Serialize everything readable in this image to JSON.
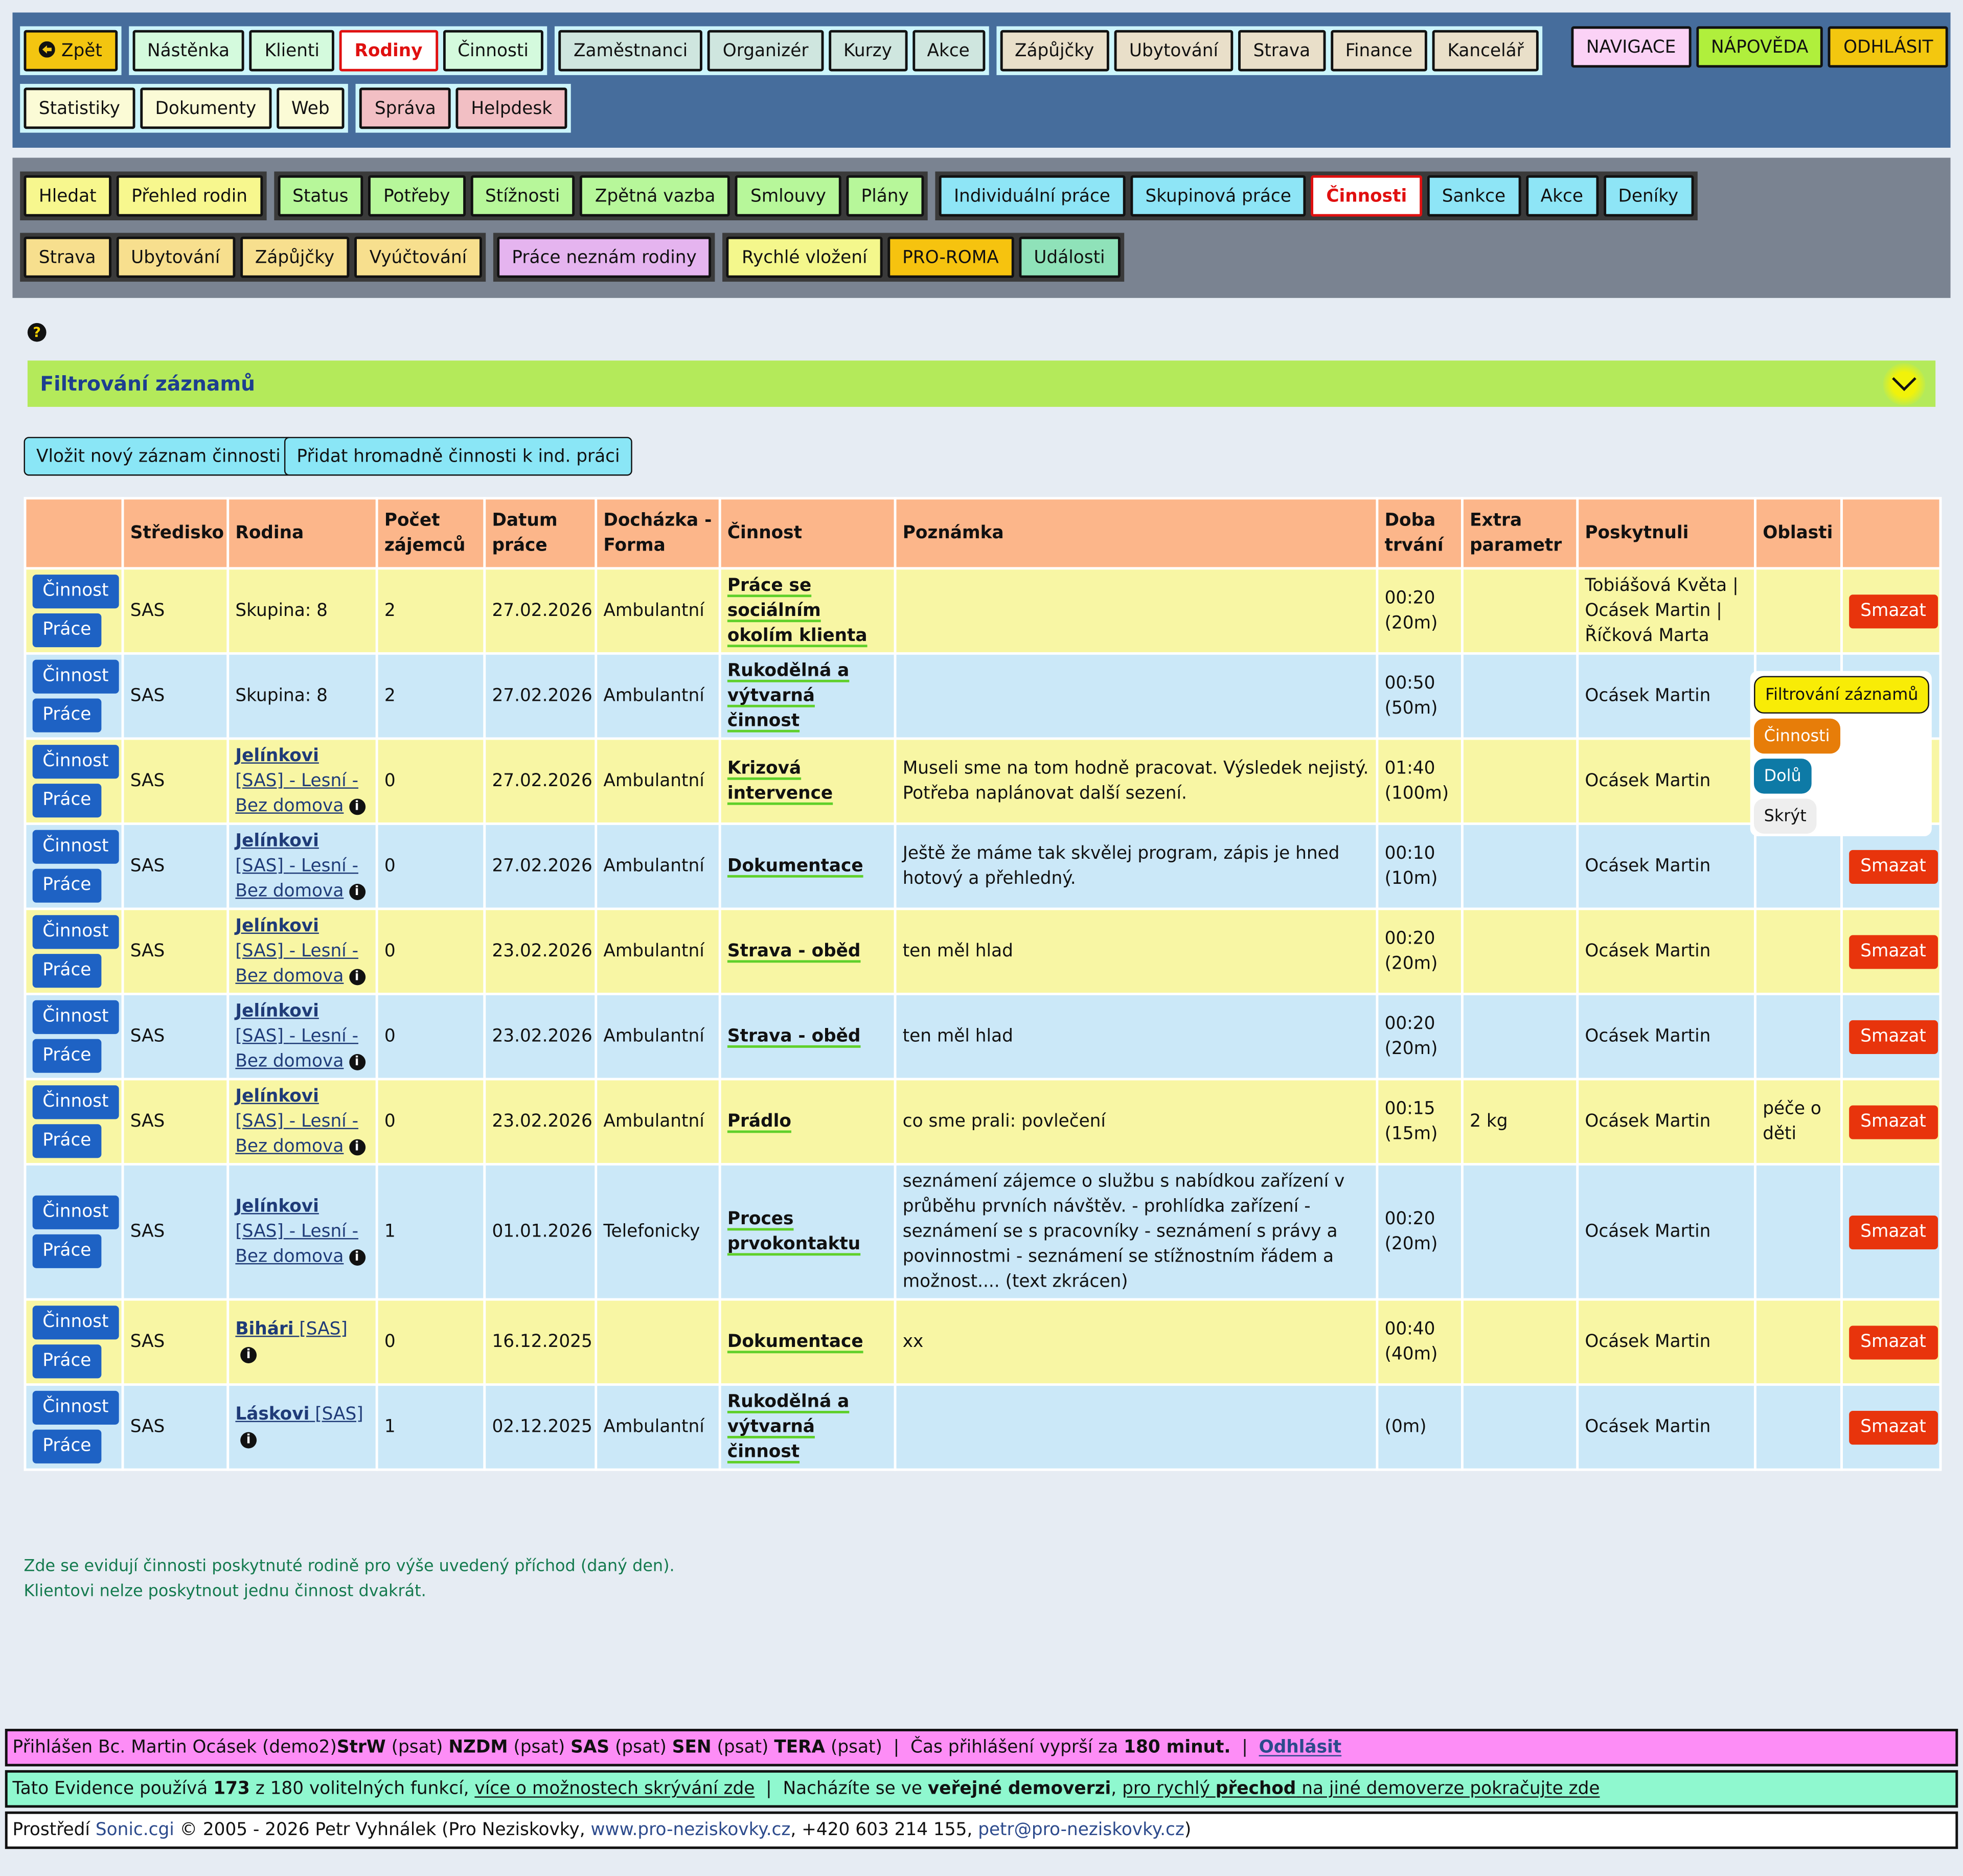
{
  "nav1": {
    "row1_groups": [
      {
        "bg": "#ccf5fb",
        "items": [
          {
            "label": "Zpět",
            "color": "#f3c510",
            "icon": "arrow-left-circle-icon"
          }
        ]
      },
      {
        "bg": "#ccf5fb",
        "items": [
          {
            "label": "Nástěnka",
            "color": "#d4fadd"
          },
          {
            "label": "Klienti",
            "color": "#d4fadd"
          },
          {
            "label": "Rodiny",
            "color": "#d4fadd",
            "active": true
          },
          {
            "label": "Činnosti",
            "color": "#d4fadd"
          }
        ]
      },
      {
        "bg": "#ccf5fb",
        "items": [
          {
            "label": "Zaměstnanci",
            "color": "#cfe6df"
          },
          {
            "label": "Organizér",
            "color": "#cfe6df"
          },
          {
            "label": "Kurzy",
            "color": "#cfe6df"
          },
          {
            "label": "Akce",
            "color": "#cfe6df"
          }
        ]
      },
      {
        "bg": "#ccf5fb",
        "items": [
          {
            "label": "Zápůjčky",
            "color": "#e9dfc9"
          },
          {
            "label": "Ubytování",
            "color": "#e9dfc9"
          },
          {
            "label": "Strava",
            "color": "#e9dfc9"
          },
          {
            "label": "Finance",
            "color": "#e9dfc9"
          },
          {
            "label": "Kancelář",
            "color": "#e9dfc9"
          }
        ]
      }
    ],
    "row2_groups": [
      {
        "bg": "#ccf5fb",
        "items": [
          {
            "label": "Statistiky",
            "color": "#fbfbd6"
          },
          {
            "label": "Dokumenty",
            "color": "#fbfbd6"
          },
          {
            "label": "Web",
            "color": "#fbfbd6"
          }
        ]
      },
      {
        "bg": "#ccf5fb",
        "items": [
          {
            "label": "Správa",
            "color": "#f2bfc4"
          },
          {
            "label": "Helpdesk",
            "color": "#f2bfc4"
          }
        ]
      }
    ],
    "right": [
      {
        "label": "NAVIGACE",
        "color": "#fbd2f6"
      },
      {
        "label": "NÁPOVĚDA",
        "color": "#b0ef3c"
      },
      {
        "label": "ODHLÁSIT",
        "color": "#f3c70f"
      }
    ]
  },
  "nav2": {
    "row1_groups": [
      {
        "items": [
          {
            "label": "Hledat",
            "color": "#f7f78e"
          },
          {
            "label": "Přehled rodin",
            "color": "#f7f78e"
          }
        ]
      },
      {
        "items": [
          {
            "label": "Status",
            "color": "#b7f79a"
          },
          {
            "label": "Potřeby",
            "color": "#b7f79a"
          },
          {
            "label": "Stížnosti",
            "color": "#b7f79a"
          },
          {
            "label": "Zpětná vazba",
            "color": "#b7f79a"
          },
          {
            "label": "Smlouvy",
            "color": "#b7f79a"
          },
          {
            "label": "Plány",
            "color": "#b7f79a"
          }
        ]
      },
      {
        "items": [
          {
            "label": "Individuální práce",
            "color": "#8ee5f6"
          },
          {
            "label": "Skupinová práce",
            "color": "#8ee5f6"
          },
          {
            "label": "Činnosti",
            "color": "#8ee5f6",
            "active": true
          },
          {
            "label": "Sankce",
            "color": "#8ee5f6"
          },
          {
            "label": "Akce",
            "color": "#8ee5f6"
          },
          {
            "label": "Deníky",
            "color": "#8ee5f6"
          }
        ]
      }
    ],
    "row2_groups": [
      {
        "items": [
          {
            "label": "Strava",
            "color": "#f7df8e"
          },
          {
            "label": "Ubytování",
            "color": "#f7df8e"
          },
          {
            "label": "Zápůjčky",
            "color": "#f7df8e"
          },
          {
            "label": "Vyúčtování",
            "color": "#f7df8e"
          }
        ]
      },
      {
        "items": [
          {
            "label": "Práce neznám rodiny",
            "color": "#e5b4ef"
          }
        ]
      },
      {
        "items": [
          {
            "label": "Rychlé vložení",
            "color": "#f4f78c"
          },
          {
            "label": "PRO-ROMA",
            "color": "#f6c30f"
          },
          {
            "label": "Události",
            "color": "#8fe2b9"
          }
        ]
      }
    ]
  },
  "help_icon": "question-circle-icon",
  "filter": {
    "title": "Filtrování záznamů",
    "icon": "chevron-down-icon"
  },
  "actions": {
    "insert": "Vložit nový záznam činnosti",
    "bulk": "Přidat hromadně činnosti k ind. práci"
  },
  "table": {
    "headers": [
      "",
      "Středisko",
      "Rodina",
      "Počet zájemců",
      "Datum práce",
      "Docházka - Forma",
      "Činnost",
      "Poznámka",
      "Doba trvání",
      "Extra parametr",
      "Poskytnuli",
      "Oblasti",
      ""
    ],
    "btn_cinnost": "Činnost",
    "btn_prace": "Práce",
    "btn_delete": "Smazat",
    "rows": [
      {
        "stredisko": "SAS",
        "rodina": {
          "type": "text",
          "text": "Skupina: 8"
        },
        "pocet": "2",
        "datum": "27.02.2026",
        "forma": "Ambulantní",
        "cinnost": "Práce se sociálním okolím klienta",
        "poznamka": "",
        "doba": "00:20",
        "doba_min": "(20m)",
        "extra": "",
        "poskytnuli": "Tobiášová Květa | Ocásek Martin | Říčková Marta",
        "oblasti": "",
        "smazat": true
      },
      {
        "stredisko": "SAS",
        "rodina": {
          "type": "text",
          "text": "Skupina: 8"
        },
        "pocet": "2",
        "datum": "27.02.2026",
        "forma": "Ambulantní",
        "cinnost": "Rukodělná a výtvarná činnost",
        "poznamka": "",
        "doba": "00:50",
        "doba_min": "(50m)",
        "extra": "",
        "poskytnuli": "Ocásek Martin",
        "oblasti": "",
        "smazat": false
      },
      {
        "stredisko": "SAS",
        "rodina": {
          "type": "link",
          "name": "Jelínkovi",
          "tag": "[SAS]",
          "rest": "- Lesní - Bez domova"
        },
        "pocet": "0",
        "datum": "27.02.2026",
        "forma": "Ambulantní",
        "cinnost": "Krizová intervence",
        "poznamka": "Museli sme na tom hodně pracovat. Výsledek nejistý. Potřeba naplánovat další sezení.",
        "doba": "01:40",
        "doba_min": "(100m)",
        "extra": "",
        "poskytnuli": "Ocásek Martin",
        "oblasti": "",
        "smazat": false
      },
      {
        "stredisko": "SAS",
        "rodina": {
          "type": "link",
          "name": "Jelínkovi",
          "tag": "[SAS]",
          "rest": "- Lesní - Bez domova"
        },
        "pocet": "0",
        "datum": "27.02.2026",
        "forma": "Ambulantní",
        "cinnost": "Dokumentace",
        "poznamka": "Ještě že máme tak skvělej program, zápis je hned hotový a přehledný.",
        "doba": "00:10",
        "doba_min": "(10m)",
        "extra": "",
        "poskytnuli": "Ocásek Martin",
        "oblasti": "",
        "smazat": true
      },
      {
        "stredisko": "SAS",
        "rodina": {
          "type": "link",
          "name": "Jelínkovi",
          "tag": "[SAS]",
          "rest": "- Lesní - Bez domova"
        },
        "pocet": "0",
        "datum": "23.02.2026",
        "forma": "Ambulantní",
        "cinnost": "Strava - oběd",
        "poznamka": "ten měl hlad",
        "doba": "00:20",
        "doba_min": "(20m)",
        "extra": "",
        "poskytnuli": "Ocásek Martin",
        "oblasti": "",
        "smazat": true
      },
      {
        "stredisko": "SAS",
        "rodina": {
          "type": "link",
          "name": "Jelínkovi",
          "tag": "[SAS]",
          "rest": "- Lesní - Bez domova"
        },
        "pocet": "0",
        "datum": "23.02.2026",
        "forma": "Ambulantní",
        "cinnost": "Strava - oběd",
        "poznamka": "ten měl hlad",
        "doba": "00:20",
        "doba_min": "(20m)",
        "extra": "",
        "poskytnuli": "Ocásek Martin",
        "oblasti": "",
        "smazat": true
      },
      {
        "stredisko": "SAS",
        "rodina": {
          "type": "link",
          "name": "Jelínkovi",
          "tag": "[SAS]",
          "rest": "- Lesní - Bez domova"
        },
        "pocet": "0",
        "datum": "23.02.2026",
        "forma": "Ambulantní",
        "cinnost": "Prádlo",
        "poznamka": "co sme prali: povlečení",
        "doba": "00:15",
        "doba_min": "(15m)",
        "extra": "2 kg",
        "poskytnuli": "Ocásek Martin",
        "oblasti": "péče o děti",
        "smazat": true
      },
      {
        "stredisko": "SAS",
        "rodina": {
          "type": "link",
          "name": "Jelínkovi",
          "tag": "[SAS]",
          "rest": "- Lesní - Bez domova"
        },
        "pocet": "1",
        "datum": "01.01.2026",
        "forma": "Telefonicky",
        "cinnost": "Proces prvokontaktu",
        "poznamka": "seznámení zájemce o službu s nabídkou zařízení v průběhu prvních návštěv. - prohlídka zařízení - seznámení se s pracovníky - seznámení s právy a povinnostmi - seznámení se stížnostním řádem a možnost.... (text zkrácen)",
        "doba": "00:20",
        "doba_min": "(20m)",
        "extra": "",
        "poskytnuli": "Ocásek Martin",
        "oblasti": "",
        "smazat": true
      },
      {
        "stredisko": "SAS",
        "rodina": {
          "type": "link",
          "name": "Bihári",
          "tag": "[SAS]",
          "rest": ""
        },
        "pocet": "0",
        "datum": "16.12.2025",
        "forma": "",
        "cinnost": "Dokumentace",
        "poznamka": "xx",
        "doba": "00:40",
        "doba_min": "(40m)",
        "extra": "",
        "poskytnuli": "Ocásek Martin",
        "oblasti": "",
        "smazat": true
      },
      {
        "stredisko": "SAS",
        "rodina": {
          "type": "link",
          "name": "Láskovi",
          "tag": "[SAS]",
          "rest": ""
        },
        "pocet": "1",
        "datum": "02.12.2025",
        "forma": "Ambulantní",
        "cinnost": "Rukodělná a výtvarná činnost",
        "poznamka": "",
        "doba": "",
        "doba_min": "(0m)",
        "extra": "",
        "poskytnuli": "Ocásek Martin",
        "oblasti": "",
        "smazat": true
      }
    ]
  },
  "float_panel": {
    "filter": "Filtrování záznamů",
    "cinnosti": "Činnosti",
    "dolu": "Dolů",
    "skryt": "Skrýt"
  },
  "notes": [
    "Zde se evidují činnosti poskytnuté rodině pro výše uvedený příchod (daný den).",
    "Klientovi nelze poskytnout jednu činnost dvakrát."
  ],
  "footer": {
    "login_prefix": "Přihlášen Bc. Martin Ocásek (demo2)",
    "units": [
      {
        "code": "StrW",
        "role": "(psat)"
      },
      {
        "code": "NZDM",
        "role": "(psat)"
      },
      {
        "code": "SAS",
        "role": "(psat)"
      },
      {
        "code": "SEN",
        "role": "(psat)"
      },
      {
        "code": "TERA",
        "role": "(psat)"
      }
    ],
    "sep": "|",
    "expire_text": "Čas přihlášení vyprší za",
    "expire_value": "180 minut.",
    "logout": "Odhlásit",
    "features_prefix": "Tato Evidence používá",
    "features_used": "173",
    "features_rest": "z 180 volitelných funkcí,",
    "features_link": "více o možnostech skrývání zde",
    "demo_text": "Nacházíte se ve",
    "demo_bold": "veřejné demoverzi",
    "demo_link_a": "pro rychlý",
    "demo_link_b": "přechod",
    "demo_link_c": "na jiné demoverze pokračujte zde",
    "env_prefix": "Prostředí",
    "env_link": "Sonic.cgi",
    "copyright": "© 2005 - 2026 Petr Vyhnálek (Pro Neziskovky,",
    "web": "www.pro-neziskovky.cz",
    "phone": ", +420 603 214 155,",
    "email": "petr@pro-neziskovky.cz",
    "close": ")",
    "colors": {
      "login": "#fd8df6",
      "features": "#8ff8cf",
      "env": "#ffffff"
    }
  }
}
